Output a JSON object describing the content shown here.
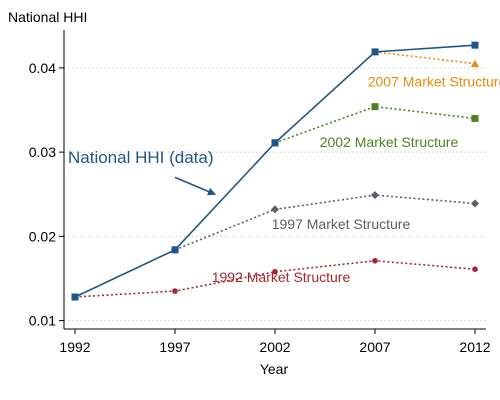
{
  "chart_data": {
    "type": "line",
    "title": "",
    "xlabel": "Year",
    "ylabel": "National HHI",
    "x": [
      1992,
      1997,
      2002,
      2007,
      2012
    ],
    "xlim": [
      1992,
      2012
    ],
    "ylim": [
      0.009,
      0.0445
    ],
    "yticks": [
      {
        "value": 0.01,
        "label": "0.01"
      },
      {
        "value": 0.02,
        "label": "0.02"
      },
      {
        "value": 0.03,
        "label": "0.03"
      },
      {
        "value": 0.04,
        "label": "0.04"
      }
    ],
    "xticks": [
      {
        "value": 1992,
        "label": "1992"
      },
      {
        "value": 1997,
        "label": "1997"
      },
      {
        "value": 2002,
        "label": "2002"
      },
      {
        "value": 2007,
        "label": "2007"
      },
      {
        "value": 2012,
        "label": "2012"
      }
    ],
    "grid": true,
    "legend": "none",
    "series": [
      {
        "key": "1992",
        "name": "1992 Market Structure",
        "color": "#a3282f",
        "style": "dotted",
        "marker": "circle",
        "x": [
          1992,
          1997,
          2002,
          2007,
          2012
        ],
        "values": [
          0.0128,
          0.0135,
          0.0158,
          0.0171,
          0.0161
        ],
        "label_at": [
          2002.3,
          0.0146
        ]
      },
      {
        "key": "1997",
        "name": "1997 Market Structure",
        "color": "#5e5e69",
        "style": "dotted",
        "marker": "diamond",
        "x": [
          1997,
          2002,
          2007,
          2012
        ],
        "values": [
          0.0184,
          0.0232,
          0.0249,
          0.0239
        ],
        "label_at": [
          2005.3,
          0.0209
        ]
      },
      {
        "key": "2002",
        "name": "2002 Market Structure",
        "color": "#4e8123",
        "style": "dotted",
        "marker": "square",
        "x": [
          2002,
          2007,
          2012
        ],
        "values": [
          0.0311,
          0.0354,
          0.034
        ],
        "label_at": [
          2007.7,
          0.0306
        ]
      },
      {
        "key": "2007",
        "name": "2007 Market Structure",
        "color": "#e88a0b",
        "style": "dotted",
        "marker": "triangle",
        "x": [
          2007,
          2012
        ],
        "values": [
          0.0419,
          0.0405
        ],
        "label_at": [
          2010.1,
          0.0378
        ]
      },
      {
        "key": "data",
        "name": "National HHI (data)",
        "color": "#1f5588",
        "style": "solid",
        "marker": "square",
        "x": [
          1992,
          1997,
          2002,
          2007,
          2012
        ],
        "values": [
          0.0128,
          0.0184,
          0.0311,
          0.0419,
          0.0427
        ]
      }
    ],
    "annotation": {
      "text": "National HHI (data)",
      "color": "#1f5588",
      "arrow_from": [
        1997.0,
        0.027
      ],
      "arrow_to": [
        1999.0,
        0.025
      ]
    }
  }
}
